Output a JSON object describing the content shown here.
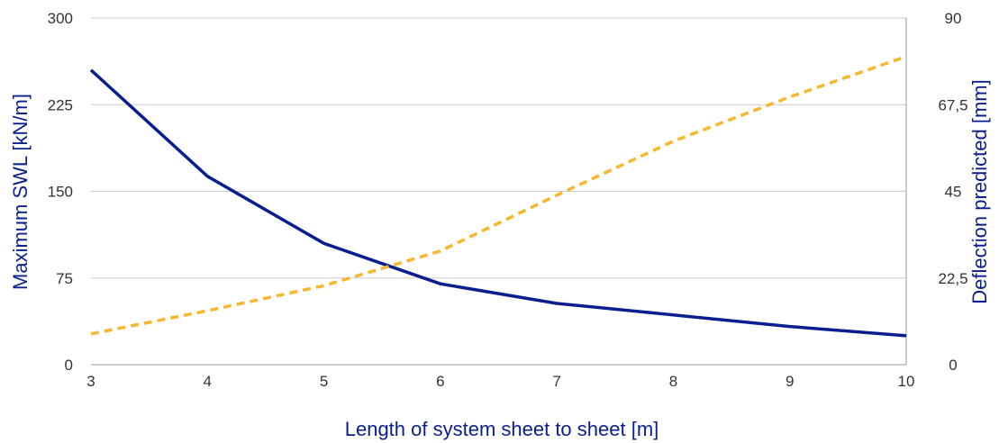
{
  "chart_data": {
    "type": "line",
    "xlabel": "Length of system sheet to sheet [m]",
    "ylabel_left": "Maximum SWL [kN/m]",
    "ylabel_right": "Deflection predicted [mm]",
    "x": [
      3,
      4,
      5,
      6,
      7,
      8,
      9,
      10
    ],
    "x_tick_labels": [
      "3",
      "4",
      "5",
      "6",
      "7",
      "8",
      "9",
      "10"
    ],
    "xlim": [
      3,
      10
    ],
    "ylim_left": [
      0,
      300
    ],
    "ylim_right": [
      0,
      90
    ],
    "y_left_tick_labels": [
      "0",
      "75",
      "150",
      "225",
      "300"
    ],
    "y_left_tick_values": [
      0,
      75,
      150,
      225,
      300
    ],
    "y_right_tick_labels": [
      "0",
      "22,5",
      "45",
      "67,5",
      "90"
    ],
    "y_right_tick_values": [
      0,
      22.5,
      45,
      67.5,
      90
    ],
    "grid": true,
    "series": [
      {
        "axis": "left",
        "style": "solid",
        "color": "#0a1f8f",
        "values": [
          255,
          163,
          105,
          70,
          53,
          43,
          33,
          25
        ]
      },
      {
        "axis": "right",
        "style": "dashed",
        "color": "#f5b82e",
        "values": [
          8,
          14,
          20.5,
          29.5,
          44,
          58,
          69.5,
          80
        ]
      }
    ]
  },
  "colors": {
    "left_axis_title": "#0a1f8f",
    "right_axis_title": "#0a1f8f",
    "x_axis_title": "#0a1f8f",
    "grid": "#cccccc",
    "axis_line": "#999999"
  }
}
